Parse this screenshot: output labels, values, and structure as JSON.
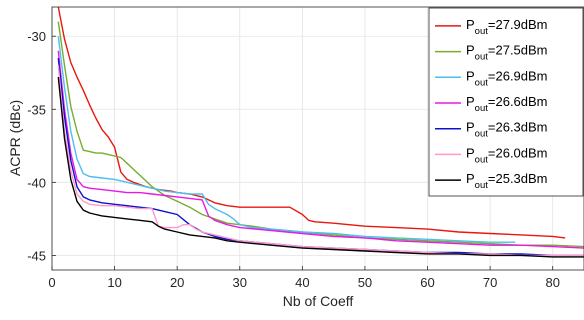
{
  "chart_data": {
    "type": "line",
    "title": "",
    "xlabel": "Nb of Coeff",
    "ylabel": "ACPR (dBc)",
    "xlim": [
      0,
      85
    ],
    "ylim": [
      -46,
      -28
    ],
    "xticks": [
      0,
      10,
      20,
      30,
      40,
      50,
      60,
      70,
      80
    ],
    "yticks": [
      -45,
      -40,
      -35,
      -30
    ],
    "grid": true,
    "legend_position": "top-right",
    "series": [
      {
        "name_main": "P",
        "name_sub": "out",
        "name_tail": "=27.9dBm",
        "color": "#e8170e",
        "x": [
          1,
          2,
          3,
          4,
          5,
          6,
          7,
          8,
          9,
          10,
          11,
          12,
          13,
          15,
          17,
          19,
          20,
          22,
          24,
          26,
          28,
          30,
          32,
          35,
          38,
          40,
          41,
          42,
          45,
          50,
          55,
          60,
          65,
          70,
          75,
          80,
          82
        ],
        "y": [
          -28,
          -30.2,
          -31.8,
          -32.8,
          -33.7,
          -34.7,
          -35.6,
          -36.4,
          -36.9,
          -37.6,
          -39.3,
          -39.8,
          -40.0,
          -40.3,
          -40.5,
          -40.6,
          -40.7,
          -40.8,
          -41.0,
          -41.4,
          -41.6,
          -41.7,
          -41.7,
          -41.7,
          -41.7,
          -42.2,
          -42.6,
          -42.7,
          -42.8,
          -43.0,
          -43.1,
          -43.2,
          -43.4,
          -43.5,
          -43.6,
          -43.7,
          -43.8
        ]
      },
      {
        "name_main": "P",
        "name_sub": "out",
        "name_tail": "=27.5dBm",
        "color": "#77ac30",
        "x": [
          1,
          2,
          3,
          4,
          5,
          6,
          7,
          8,
          9,
          10,
          11,
          12,
          13,
          14,
          15,
          16,
          18,
          20,
          22,
          24,
          26,
          28,
          30,
          32,
          35,
          40,
          45,
          50,
          55,
          60,
          65,
          70,
          75,
          80,
          85
        ],
        "y": [
          -29.0,
          -32.0,
          -34.8,
          -36.5,
          -37.8,
          -37.9,
          -38.0,
          -38.0,
          -38.1,
          -38.2,
          -38.3,
          -38.7,
          -39.1,
          -39.5,
          -39.9,
          -40.3,
          -40.9,
          -41.3,
          -41.7,
          -42.2,
          -42.5,
          -42.8,
          -42.9,
          -43.0,
          -43.2,
          -43.4,
          -43.6,
          -43.8,
          -43.9,
          -44.0,
          -44.1,
          -44.2,
          -44.3,
          -44.3,
          -44.4
        ]
      },
      {
        "name_main": "P",
        "name_sub": "out",
        "name_tail": "=26.9dBm",
        "color": "#4dbeee",
        "x": [
          1,
          2,
          3,
          4,
          5,
          6,
          8,
          10,
          12,
          14,
          16,
          18,
          20,
          22,
          23,
          24,
          25,
          26,
          27,
          28,
          29,
          30,
          32,
          35,
          40,
          45,
          50,
          55,
          60,
          65,
          70,
          74
        ],
        "y": [
          -30.0,
          -33.5,
          -36.5,
          -38.4,
          -39.4,
          -39.6,
          -39.7,
          -39.8,
          -40.0,
          -40.2,
          -40.4,
          -40.6,
          -40.7,
          -40.8,
          -40.8,
          -40.8,
          -41.5,
          -41.8,
          -42.0,
          -42.2,
          -42.5,
          -42.9,
          -43.1,
          -43.2,
          -43.4,
          -43.5,
          -43.7,
          -43.8,
          -43.9,
          -44.0,
          -44.1,
          -44.1
        ]
      },
      {
        "name_main": "P",
        "name_sub": "out",
        "name_tail": "=26.6dBm",
        "color": "#e619e6",
        "x": [
          1,
          2,
          3,
          4,
          5,
          6,
          8,
          10,
          12,
          14,
          16,
          18,
          20,
          22,
          24,
          25,
          26,
          28,
          30,
          35,
          40,
          45,
          50,
          55,
          60,
          65,
          70,
          75,
          80,
          85
        ],
        "y": [
          -31.0,
          -35.0,
          -38.0,
          -39.8,
          -40.3,
          -40.4,
          -40.5,
          -40.6,
          -40.7,
          -40.7,
          -40.8,
          -40.9,
          -41.0,
          -41.1,
          -41.2,
          -42.3,
          -42.6,
          -42.9,
          -43.1,
          -43.3,
          -43.5,
          -43.7,
          -43.8,
          -44.0,
          -44.1,
          -44.2,
          -44.3,
          -44.3,
          -44.4,
          -44.5
        ]
      },
      {
        "name_main": "P",
        "name_sub": "out",
        "name_tail": "=26.3dBm",
        "color": "#0d12cc",
        "x": [
          1,
          2,
          3,
          4,
          5,
          6,
          8,
          10,
          12,
          14,
          16,
          18,
          20,
          22,
          24,
          26,
          28,
          30,
          35,
          40,
          45,
          50,
          55,
          60,
          65,
          70,
          75,
          80,
          85
        ],
        "y": [
          -31.5,
          -35.5,
          -38.5,
          -40.3,
          -41.0,
          -41.2,
          -41.4,
          -41.5,
          -41.6,
          -41.7,
          -41.8,
          -42.0,
          -42.2,
          -42.9,
          -43.4,
          -43.7,
          -43.9,
          -44.0,
          -44.2,
          -44.4,
          -44.5,
          -44.6,
          -44.7,
          -44.8,
          -44.8,
          -44.9,
          -44.9,
          -45.0,
          -45.0
        ]
      },
      {
        "name_main": "P",
        "name_sub": "out",
        "name_tail": "=26.0dBm",
        "color": "#ff99cc",
        "x": [
          1,
          2,
          3,
          4,
          5,
          6,
          8,
          10,
          12,
          14,
          16,
          17,
          18,
          20,
          21,
          22,
          23,
          24,
          26,
          28,
          30,
          35,
          40,
          45,
          50,
          55,
          60,
          65,
          70,
          75,
          80,
          85
        ],
        "y": [
          -32.0,
          -36.5,
          -39.2,
          -40.8,
          -41.3,
          -41.5,
          -41.6,
          -41.6,
          -41.7,
          -41.8,
          -41.8,
          -43.0,
          -43.1,
          -43.1,
          -42.9,
          -42.9,
          -43.2,
          -43.4,
          -43.6,
          -43.8,
          -44.0,
          -44.2,
          -44.4,
          -44.5,
          -44.6,
          -44.7,
          -44.8,
          -44.9,
          -44.9,
          -45.0,
          -45.0,
          -45.0
        ]
      },
      {
        "name_main": "P",
        "name_sub": "out",
        "name_tail": "=25.3dBm",
        "color": "#000000",
        "x": [
          1,
          2,
          3,
          4,
          5,
          6,
          7,
          8,
          10,
          12,
          14,
          16,
          17,
          18,
          20,
          22,
          24,
          26,
          28,
          30,
          35,
          40,
          45,
          50,
          55,
          60,
          65,
          70,
          75,
          80,
          85
        ],
        "y": [
          -32.8,
          -37.0,
          -39.8,
          -41.3,
          -41.9,
          -42.1,
          -42.2,
          -42.3,
          -42.4,
          -42.5,
          -42.6,
          -42.7,
          -43.0,
          -43.2,
          -43.4,
          -43.6,
          -43.7,
          -43.8,
          -44.0,
          -44.1,
          -44.3,
          -44.5,
          -44.6,
          -44.7,
          -44.8,
          -44.9,
          -44.9,
          -45.0,
          -45.0,
          -45.1,
          -45.1
        ]
      }
    ]
  }
}
